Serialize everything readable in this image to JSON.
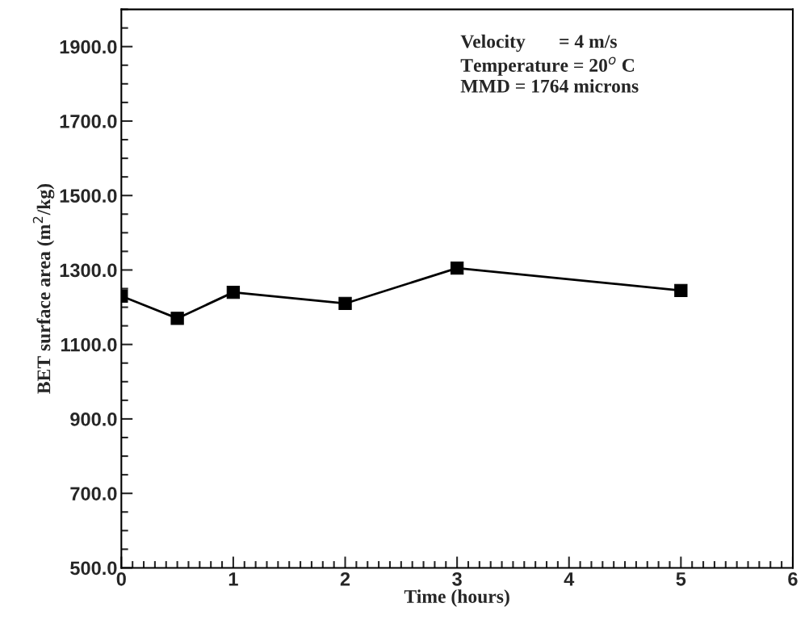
{
  "chart_data": {
    "type": "line",
    "xlabel": "Time (hours)",
    "ylabel": "BET surface area (m$^{2}$/kg)",
    "x": [
      0,
      0.5,
      1,
      2,
      3,
      5
    ],
    "series": [
      {
        "color": "#000000",
        "values": [
          1230,
          1170,
          1240,
          1210,
          1305,
          1245
        ]
      }
    ],
    "marker": "square",
    "line_style": "solid",
    "grid": false,
    "legend": false,
    "xlim": [
      0,
      6
    ],
    "xticks": [
      0,
      1,
      2,
      3,
      4,
      5,
      6
    ],
    "ylim": [
      500,
      2000
    ],
    "yticks": [
      {
        "value": 500,
        "label": "500.0"
      },
      {
        "value": 700,
        "label": "700.0"
      },
      {
        "value": 900,
        "label": "900.0"
      },
      {
        "value": 1100,
        "label": "1100.0"
      },
      {
        "value": 1300,
        "label": "1300.0"
      },
      {
        "value": 1500,
        "label": "1500.0"
      },
      {
        "value": 1700,
        "label": "1700.0"
      },
      {
        "value": 1900,
        "label": "1900.0"
      }
    ],
    "annotations": [
      "Velocity       = 4 m/s",
      "Temperature = 20$^{o}$ C",
      "MMD = 1764 microns"
    ]
  }
}
